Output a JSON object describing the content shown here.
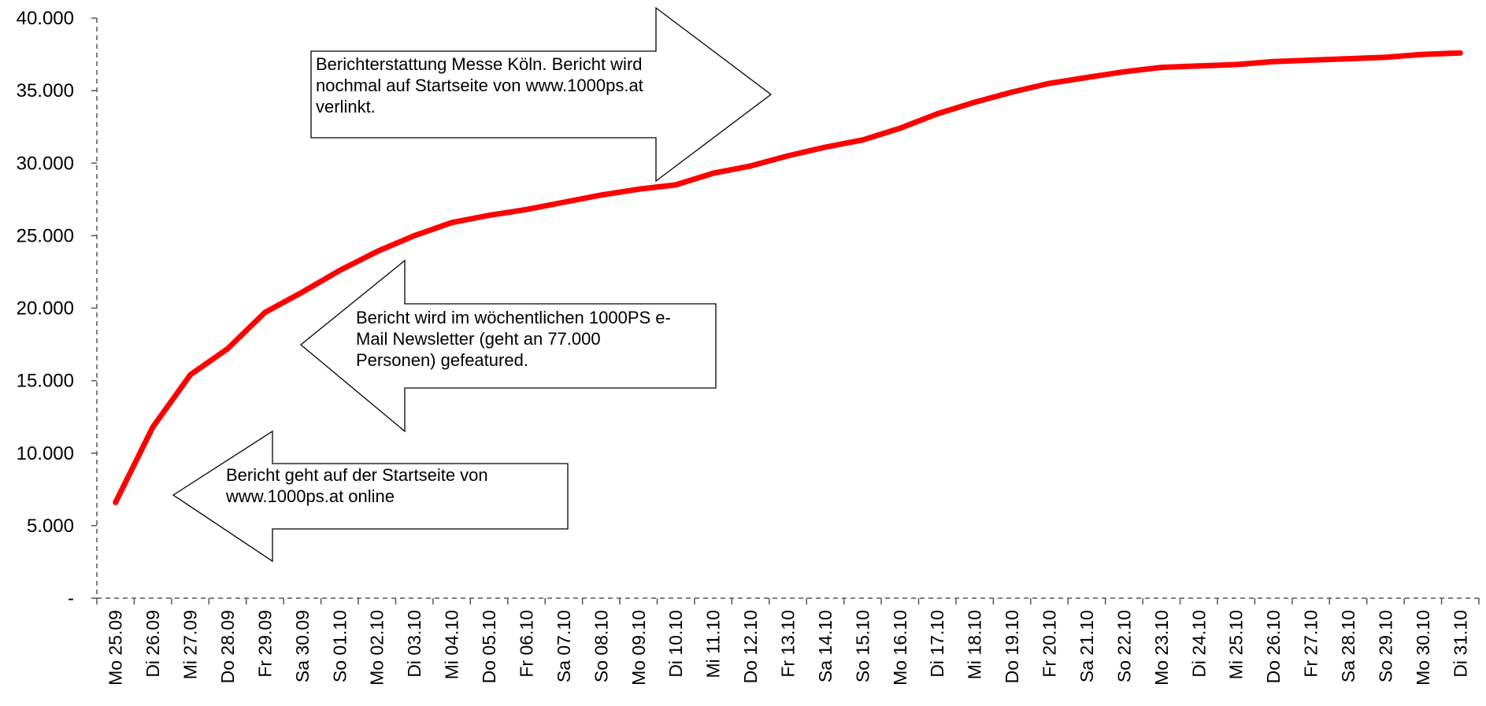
{
  "chart_data": {
    "type": "line",
    "title": "",
    "xlabel": "",
    "ylabel": "",
    "ylim": [
      0,
      40000
    ],
    "y_ticks": [
      0,
      5000,
      10000,
      15000,
      20000,
      25000,
      30000,
      35000,
      40000
    ],
    "y_tick_labels": [
      "-",
      "5.000",
      "10.000",
      "15.000",
      "20.000",
      "25.000",
      "30.000",
      "35.000",
      "40.000"
    ],
    "grid": false,
    "legend": "none",
    "line_color": "#ff0000",
    "categories": [
      "Mo 25.09",
      "Di 26.09",
      "Mi 27.09",
      "Do 28.09",
      "Fr 29.09",
      "Sa 30.09",
      "So 01.10",
      "Mo 02.10",
      "Di 03.10",
      "Mi 04.10",
      "Do 05.10",
      "Fr 06.10",
      "Sa 07.10",
      "So 08.10",
      "Mo 09.10",
      "Di 10.10",
      "Mi 11.10",
      "Do 12.10",
      "Fr 13.10",
      "Sa 14.10",
      "So 15.10",
      "Mo 16.10",
      "Di 17.10",
      "Mi 18.10",
      "Do 19.10",
      "Fr 20.10",
      "Sa 21.10",
      "So 22.10",
      "Mo 23.10",
      "Di 24.10",
      "Mi 25.10",
      "Do 26.10",
      "Fr 27.10",
      "Sa 28.10",
      "So 29.10",
      "Mo 30.10",
      "Di 31.10"
    ],
    "values": [
      6600,
      11800,
      15400,
      17200,
      19700,
      21100,
      22600,
      23900,
      25000,
      25900,
      26400,
      26800,
      27300,
      27800,
      28200,
      28500,
      29300,
      29800,
      30500,
      31100,
      31600,
      32400,
      33400,
      34200,
      34900,
      35500,
      35900,
      36300,
      36600,
      36700,
      36800,
      37000,
      37100,
      37200,
      37300,
      37500,
      37600
    ],
    "annotations": [
      {
        "text": "Berichterstattung Messe Köln. Bericht wird nochmal auf Startseite von www.1000ps.at verlinkt.",
        "direction": "right"
      },
      {
        "text": "Bericht wird im wöchentlichen 1000PS e-Mail Newsletter (geht an 77.000 Personen) gefeatured.",
        "direction": "left"
      },
      {
        "text": "Bericht geht auf der Startseite von www.1000ps.at online",
        "direction": "left"
      }
    ]
  },
  "callouts": {
    "top": [
      "Berichterstattung Messe Köln. Bericht wird",
      "nochmal auf Startseite von www.1000ps.at",
      "verlinkt."
    ],
    "middle": [
      "Bericht wird im wöchentlichen 1000PS e-",
      "Mail Newsletter (geht an 77.000",
      "Personen) gefeatured."
    ],
    "bottom": [
      "Bericht geht auf der Startseite von",
      "www.1000ps.at online"
    ]
  }
}
